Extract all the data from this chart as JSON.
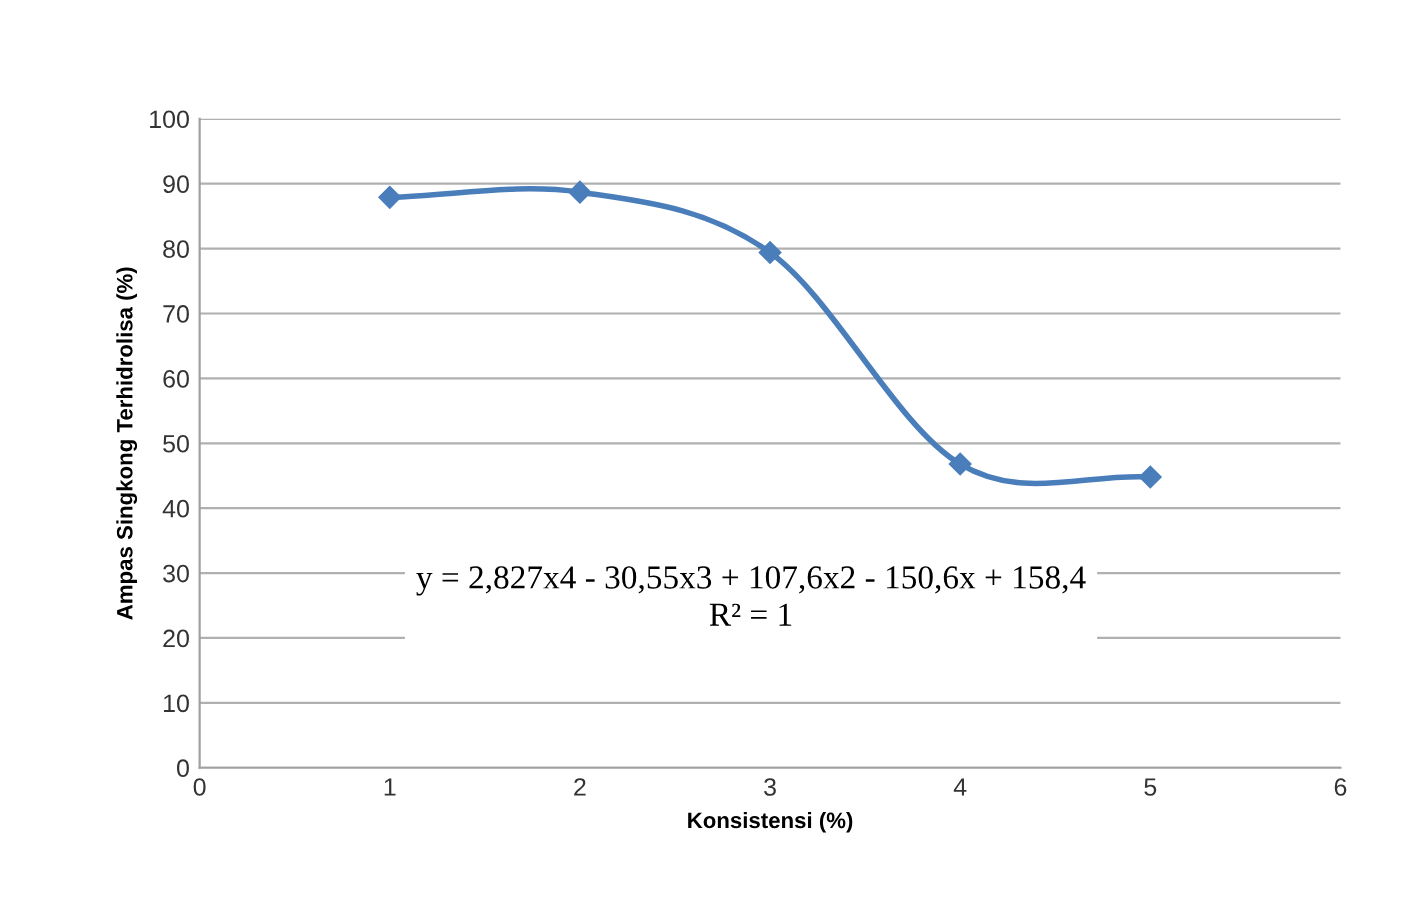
{
  "chart_data": {
    "type": "line",
    "xlabel": "Konsistensi (%)",
    "ylabel": "Ampas Singkong Terhidrolisa (%)",
    "x": [
      1,
      2,
      3,
      4,
      5
    ],
    "series": [
      {
        "color": "#4a7ebb",
        "values": [
          87.9,
          88.7,
          79.4,
          46.8,
          44.8
        ]
      }
    ],
    "xlim": [
      0,
      6
    ],
    "xticks": [
      0,
      1,
      2,
      3,
      4,
      5,
      6
    ],
    "ylim": [
      0,
      100
    ],
    "yticks": [
      0,
      10,
      20,
      30,
      40,
      50,
      60,
      70,
      80,
      90,
      100
    ],
    "grid": "y",
    "marker": "diamond",
    "line_style": "solid",
    "legend": false,
    "annotations": [
      "y = 2,827x4 - 30,55x3 + 107,6x2 - 150,6x + 158,4\nR² = 1"
    ]
  }
}
